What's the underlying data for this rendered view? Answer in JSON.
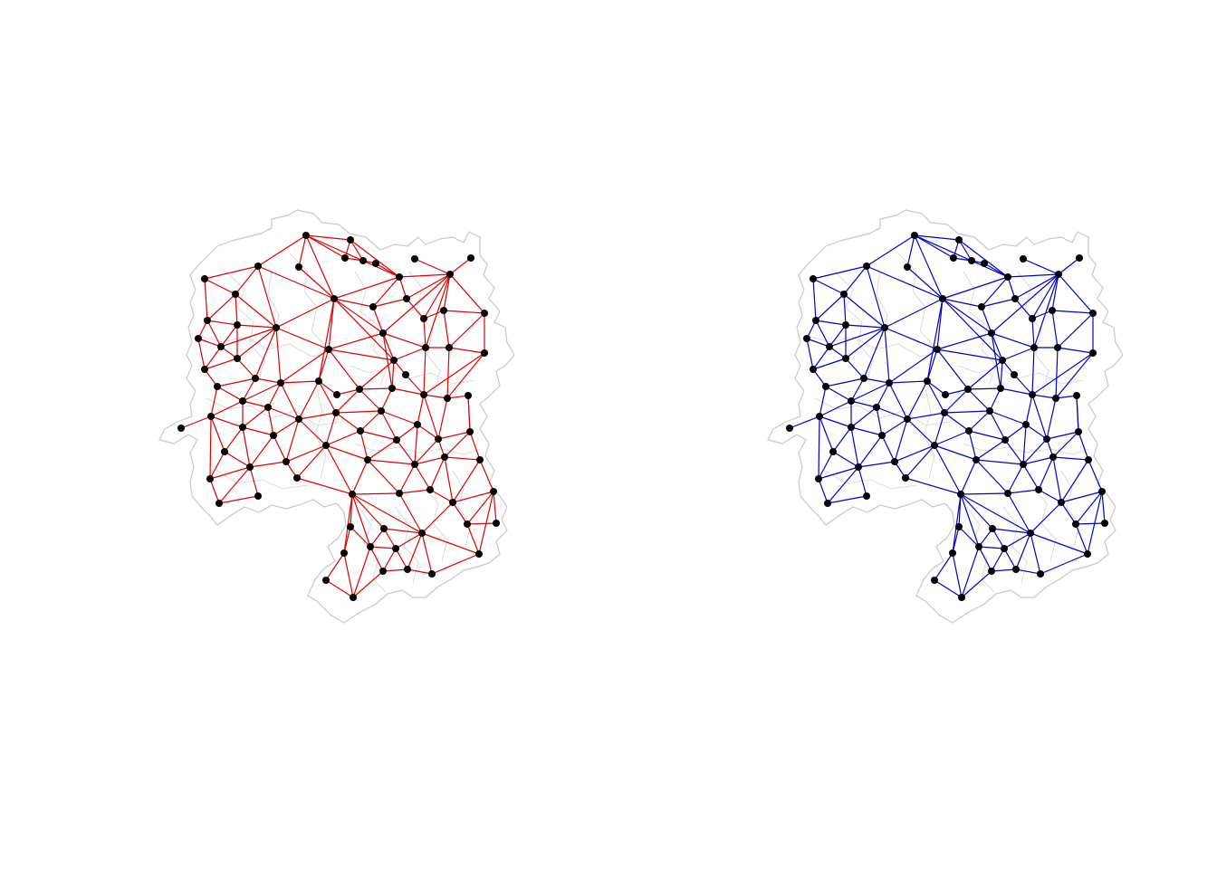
{
  "colors": {
    "background": "#ffffff",
    "boundary": "#c8c8c8",
    "node": "#000000",
    "left_network_edges": "#dd0000",
    "right_network_edges": "#0000cc"
  },
  "panels": [
    {
      "name": "red-neighbor-network",
      "edge_color": "#dd0000"
    },
    {
      "name": "blue-neighbor-network",
      "edge_color": "#0000cc"
    }
  ]
}
